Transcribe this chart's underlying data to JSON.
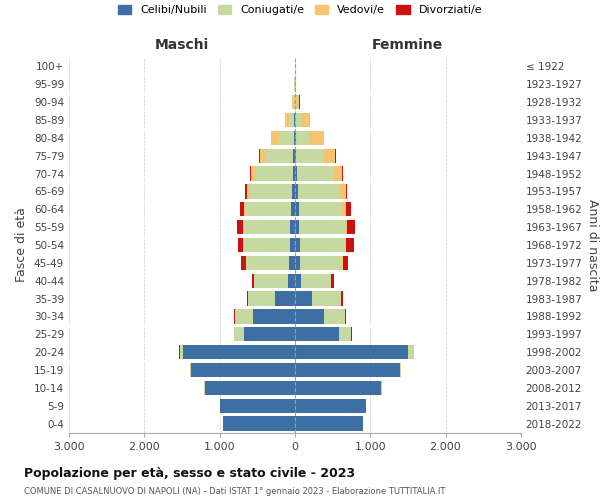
{
  "age_groups": [
    "0-4",
    "5-9",
    "10-14",
    "15-19",
    "20-24",
    "25-29",
    "30-34",
    "35-39",
    "40-44",
    "45-49",
    "50-54",
    "55-59",
    "60-64",
    "65-69",
    "70-74",
    "75-79",
    "80-84",
    "85-89",
    "90-94",
    "95-99",
    "100+"
  ],
  "birth_years": [
    "2018-2022",
    "2013-2017",
    "2008-2012",
    "2003-2007",
    "1998-2002",
    "1993-1997",
    "1988-1992",
    "1983-1987",
    "1978-1982",
    "1973-1977",
    "1968-1972",
    "1963-1967",
    "1958-1962",
    "1953-1957",
    "1948-1952",
    "1943-1947",
    "1938-1942",
    "1933-1937",
    "1928-1932",
    "1923-1927",
    "≤ 1922"
  ],
  "males": {
    "celibe": [
      950,
      1000,
      1200,
      1380,
      1480,
      680,
      560,
      260,
      90,
      75,
      70,
      60,
      50,
      40,
      30,
      20,
      15,
      8,
      4,
      2,
      2
    ],
    "coniugato": [
      0,
      1,
      2,
      10,
      50,
      130,
      240,
      360,
      450,
      570,
      610,
      620,
      600,
      560,
      490,
      370,
      190,
      75,
      18,
      4,
      2
    ],
    "vedovo": [
      0,
      0,
      0,
      0,
      1,
      0,
      1,
      1,
      3,
      5,
      10,
      15,
      25,
      40,
      60,
      80,
      110,
      50,
      15,
      3,
      1
    ],
    "divorziato": [
      0,
      0,
      0,
      0,
      2,
      5,
      10,
      20,
      30,
      60,
      70,
      80,
      50,
      20,
      15,
      10,
      5,
      2,
      1,
      0,
      0
    ]
  },
  "females": {
    "nubile": [
      900,
      950,
      1150,
      1400,
      1500,
      590,
      380,
      230,
      80,
      70,
      65,
      55,
      50,
      35,
      25,
      15,
      12,
      6,
      3,
      2,
      1
    ],
    "coniugata": [
      0,
      0,
      2,
      10,
      80,
      160,
      280,
      380,
      400,
      560,
      600,
      610,
      580,
      560,
      490,
      370,
      170,
      70,
      18,
      4,
      2
    ],
    "vedova": [
      0,
      0,
      0,
      0,
      1,
      1,
      2,
      3,
      5,
      10,
      20,
      30,
      50,
      80,
      110,
      150,
      200,
      120,
      40,
      8,
      2
    ],
    "divorziata": [
      0,
      0,
      0,
      0,
      2,
      5,
      10,
      20,
      40,
      60,
      100,
      100,
      60,
      20,
      15,
      10,
      5,
      2,
      1,
      0,
      0
    ]
  },
  "colors": {
    "celibe": "#3d6fa5",
    "coniugato": "#c5d9a0",
    "vedovo": "#f5c470",
    "divorziato": "#cc1111"
  },
  "xlim": 3000,
  "title": "Popolazione per età, sesso e stato civile - 2023",
  "subtitle": "COMUNE DI CASALNUOVO DI NAPOLI (NA) - Dati ISTAT 1° gennaio 2023 - Elaborazione TUTTITALIA.IT",
  "ylabel_left": "Fasce di età",
  "ylabel_right": "Anni di nascita",
  "maschi_label": "Maschi",
  "femmine_label": "Femmine",
  "legend_labels": [
    "Celibi/Nubili",
    "Coniugati/e",
    "Vedovi/e",
    "Divorziati/e"
  ],
  "background_color": "#ffffff",
  "grid_color": "#cccccc"
}
